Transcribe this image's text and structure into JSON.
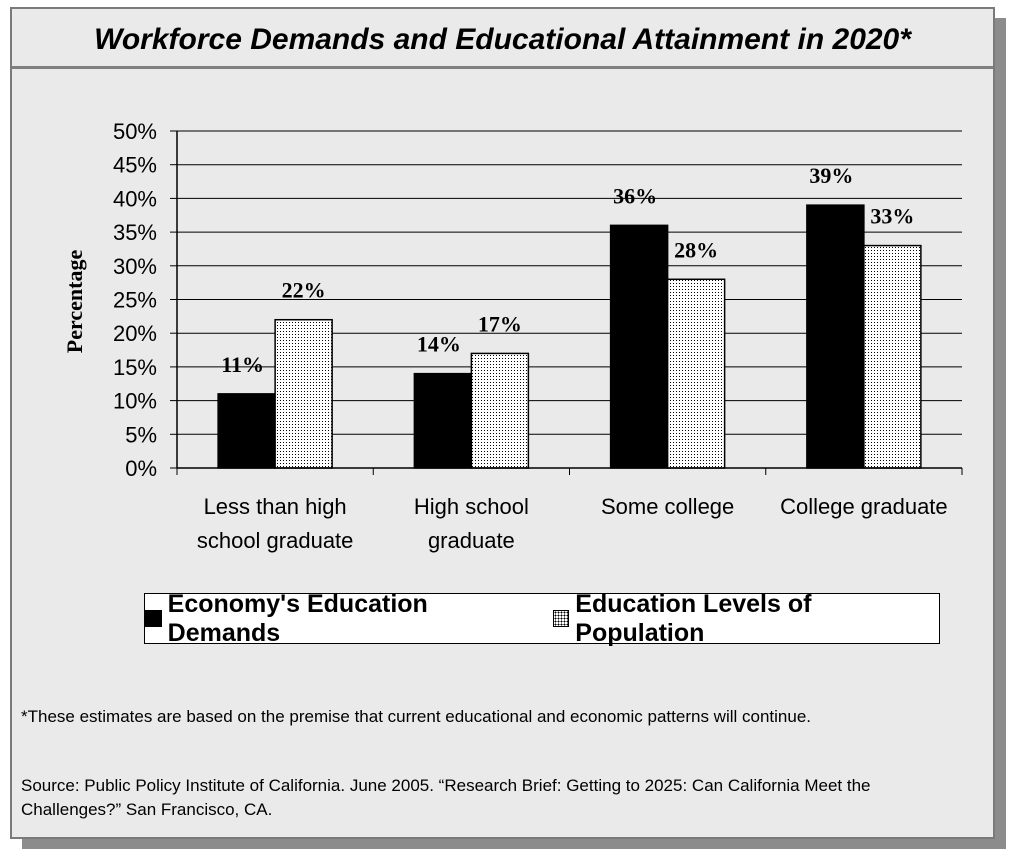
{
  "figure": {
    "title": "Workforce Demands and Educational Attainment in 2020*",
    "footnote": "*These estimates are based on the premise that current educational and economic patterns will continue.",
    "source": "Source:  Public Policy Institute of California.  June 2005.  “Research Brief: Getting to 2025: Can California Meet the Challenges?”  San Francisco, CA."
  },
  "chart_data": {
    "type": "bar",
    "title": "Workforce Demands and Educational Attainment in 2020*",
    "xlabel": "",
    "ylabel": "Percentage",
    "ylim": [
      0,
      50
    ],
    "yticks": [
      "0%",
      "5%",
      "10%",
      "15%",
      "20%",
      "25%",
      "30%",
      "35%",
      "40%",
      "45%",
      "50%"
    ],
    "grid": "horizontal",
    "legend_position": "bottom",
    "categories": [
      [
        "Less than high",
        "school graduate"
      ],
      [
        "High school",
        "graduate"
      ],
      [
        "Some college"
      ],
      [
        "College graduate"
      ]
    ],
    "series": [
      {
        "name": "Economy's Education Demands",
        "values": [
          11,
          14,
          36,
          39
        ],
        "labels": [
          "11%",
          "14%",
          "36%",
          "39%"
        ],
        "fill": "solid",
        "color": "#000000"
      },
      {
        "name": "Education Levels of Population",
        "values": [
          22,
          17,
          28,
          33
        ],
        "labels": [
          "22%",
          "17%",
          "28%",
          "33%"
        ],
        "fill": "dotted",
        "color": "#ffffff"
      }
    ]
  }
}
